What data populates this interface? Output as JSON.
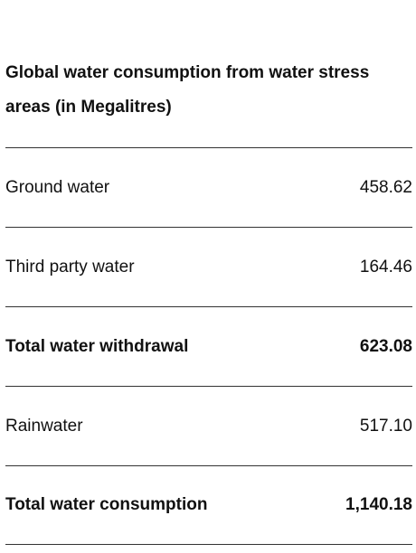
{
  "title": "Global water consumption from water stress areas (in Megalitres)",
  "rows": [
    {
      "label": "Ground water",
      "value": "458.62",
      "total": false
    },
    {
      "label": "Third party water",
      "value": "164.46",
      "total": false
    },
    {
      "label": "Total water withdrawal",
      "value": "623.08",
      "total": true
    },
    {
      "label": "Rainwater",
      "value": "517.10",
      "total": false
    },
    {
      "label": "Total water consumption",
      "value": "1,140.18",
      "total": true
    }
  ]
}
